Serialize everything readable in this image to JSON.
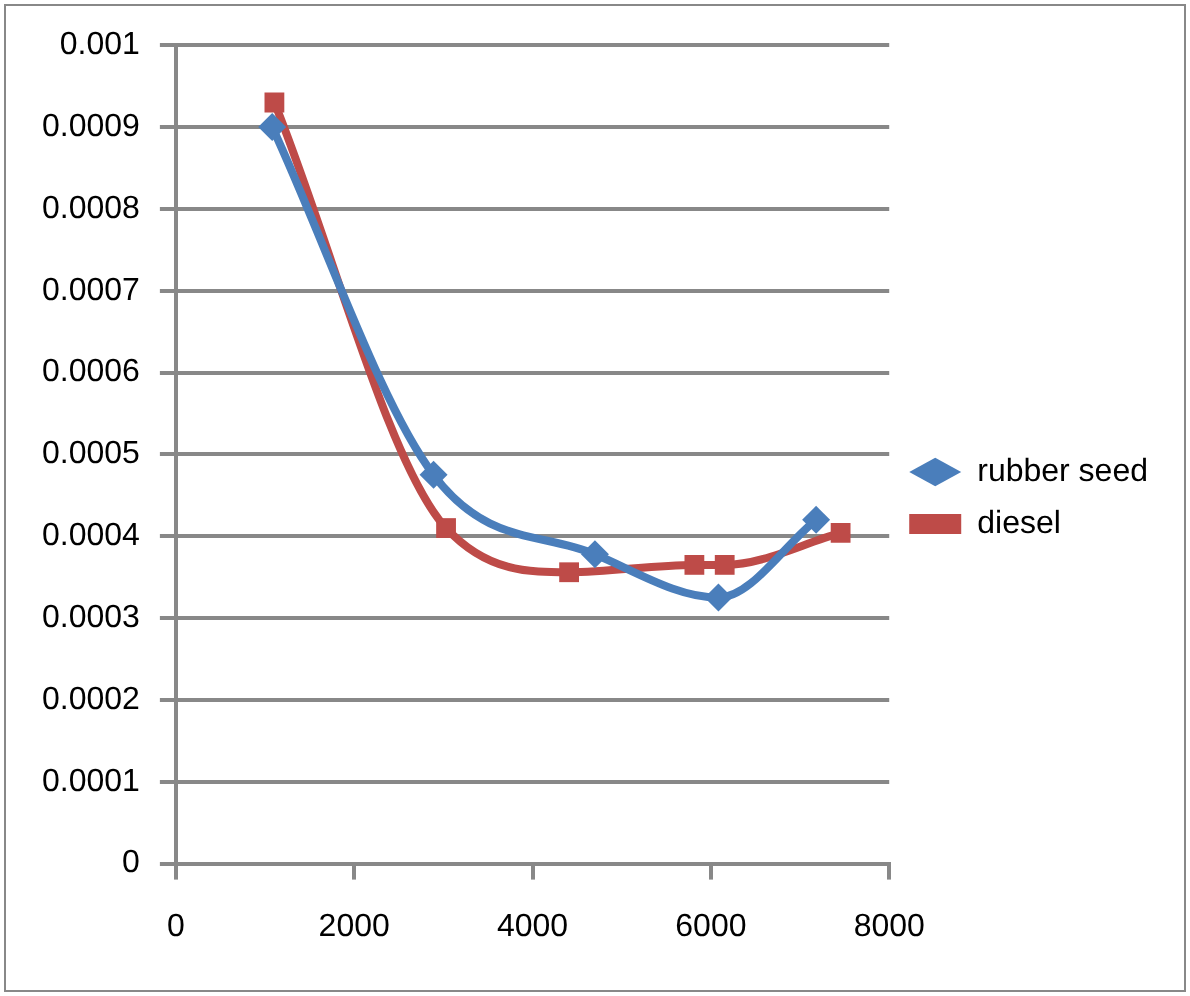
{
  "chart_data": {
    "type": "line",
    "xlim": [
      0,
      8000
    ],
    "xticks": [
      0,
      2000,
      4000,
      6000,
      8000
    ],
    "ylim": [
      0,
      0.001
    ],
    "yticks": [
      {
        "value": 0,
        "label": "0"
      },
      {
        "value": 0.0001,
        "label": "0.0001"
      },
      {
        "value": 0.0002,
        "label": "0.0002"
      },
      {
        "value": 0.0003,
        "label": "0.0003"
      },
      {
        "value": 0.0004,
        "label": "0.0004"
      },
      {
        "value": 0.0005,
        "label": "0.0005"
      },
      {
        "value": 0.0006,
        "label": "0.0006"
      },
      {
        "value": 0.0007,
        "label": "0.0007"
      },
      {
        "value": 0.0008,
        "label": "0.0008"
      },
      {
        "value": 0.0009,
        "label": "0.0009"
      },
      {
        "value": 0.001,
        "label": "0.001"
      }
    ],
    "grid": "y",
    "legend": "right",
    "series": [
      {
        "name": "rubber seed",
        "color": "#4a7ebb",
        "marker": "diamond",
        "x": [
          1080,
          2890,
          4700,
          6085,
          7180
        ],
        "values": [
          0.0009,
          0.000475,
          0.000378,
          0.000325,
          0.00042
        ]
      },
      {
        "name": "diesel",
        "color": "#be4b48",
        "marker": "square",
        "x": [
          1105,
          3030,
          4410,
          5815,
          6155,
          7455
        ],
        "values": [
          0.00093,
          0.00041,
          0.000356,
          0.000365,
          0.000365,
          0.000404
        ]
      }
    ]
  }
}
